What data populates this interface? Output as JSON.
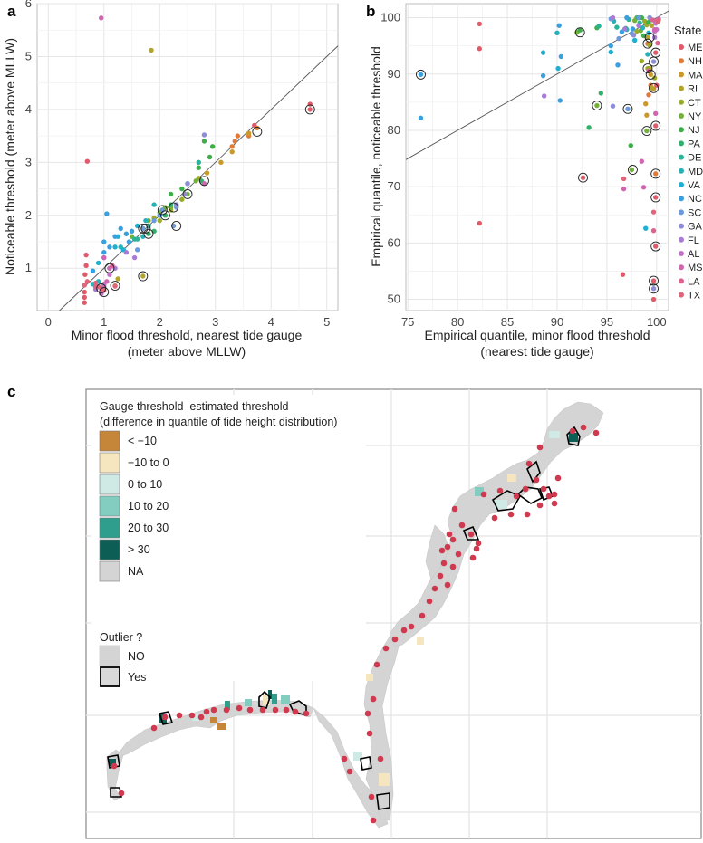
{
  "chart_data": [
    {
      "panel": "a",
      "type": "scatter",
      "xlabel": "Minor flood threshold, nearest tide gauge",
      "xlabel2": "(meter above MLLW)",
      "ylabel": "Noticeable threshold (meter above MLLW)",
      "xlim": [
        -0.2,
        5.2
      ],
      "ylim": [
        0.2,
        6.0
      ],
      "xticks": [
        0,
        1,
        2,
        3,
        4,
        5
      ],
      "yticks": [
        1,
        2,
        3,
        4,
        5,
        6
      ],
      "reference_line": {
        "slope": 1,
        "intercept": 0
      },
      "points": [
        [
          "ME",
          0.65,
          0.35
        ],
        [
          "ME",
          0.65,
          0.45
        ],
        [
          "ME",
          0.65,
          0.55
        ],
        [
          "ME",
          0.68,
          1.05
        ],
        [
          "ME",
          0.66,
          0.88
        ],
        [
          "ME",
          0.7,
          3.02
        ],
        [
          "ME",
          0.68,
          1.25
        ],
        [
          "ME",
          0.95,
          0.62
        ],
        [
          "ME",
          4.7,
          4.1
        ],
        [
          "ME",
          4.7,
          4.0
        ],
        [
          "ME",
          3.7,
          3.7
        ],
        [
          "ME",
          1.0,
          0.7
        ],
        [
          "NH",
          3.35,
          3.4
        ],
        [
          "NH",
          3.3,
          3.3
        ],
        [
          "NH",
          3.4,
          3.5
        ],
        [
          "NH",
          3.6,
          3.5
        ],
        [
          "NH",
          3.75,
          3.65
        ],
        [
          "MA",
          2.85,
          2.8
        ],
        [
          "MA",
          3.3,
          3.2
        ],
        [
          "MA",
          3.6,
          3.55
        ],
        [
          "MA",
          3.1,
          3.0
        ],
        [
          "RI",
          1.85,
          5.12
        ],
        [
          "RI",
          1.7,
          0.85
        ],
        [
          "RI",
          1.0,
          0.68
        ],
        [
          "RI",
          1.2,
          0.67
        ],
        [
          "RI",
          1.25,
          0.8
        ],
        [
          "CT",
          2.1,
          2.0
        ],
        [
          "CT",
          2.4,
          2.3
        ],
        [
          "CT",
          2.7,
          2.7
        ],
        [
          "CT",
          2.2,
          2.1
        ],
        [
          "CT",
          2.3,
          2.2
        ],
        [
          "CT",
          2.0,
          1.9
        ],
        [
          "CT",
          1.9,
          1.95
        ],
        [
          "NY",
          1.5,
          1.6
        ],
        [
          "NY",
          1.8,
          1.9
        ],
        [
          "NY",
          2.0,
          2.05
        ],
        [
          "NY",
          2.2,
          2.15
        ],
        [
          "NY",
          2.5,
          2.4
        ],
        [
          "NY",
          2.65,
          2.65
        ],
        [
          "NY",
          2.1,
          2.15
        ],
        [
          "NJ",
          2.4,
          2.5
        ],
        [
          "NJ",
          2.7,
          2.9
        ],
        [
          "NJ",
          2.9,
          3.1
        ],
        [
          "NJ",
          2.95,
          3.3
        ],
        [
          "NJ",
          2.8,
          3.4
        ],
        [
          "NJ",
          2.5,
          2.6
        ],
        [
          "NJ",
          2.2,
          2.4
        ],
        [
          "PA",
          1.8,
          1.65
        ],
        [
          "PA",
          2.0,
          2.0
        ],
        [
          "PA",
          1.9,
          1.7
        ],
        [
          "PA",
          2.1,
          2.0
        ],
        [
          "PA",
          2.2,
          2.2
        ],
        [
          "PA",
          2.05,
          2.1
        ],
        [
          "PA",
          2.75,
          2.65
        ],
        [
          "DE",
          1.55,
          1.55
        ],
        [
          "DE",
          1.6,
          1.55
        ],
        [
          "DE",
          1.8,
          1.8
        ],
        [
          "DE",
          2.7,
          3.0
        ],
        [
          "MD",
          0.8,
          0.7
        ],
        [
          "MD",
          0.9,
          0.75
        ],
        [
          "MD",
          1.1,
          1.0
        ],
        [
          "MD",
          1.3,
          1.4
        ],
        [
          "MD",
          1.7,
          1.6
        ],
        [
          "MD",
          1.75,
          1.9
        ],
        [
          "MD",
          1.9,
          2.2
        ],
        [
          "VA",
          0.9,
          1.1
        ],
        [
          "VA",
          1.0,
          1.2
        ],
        [
          "VA",
          1.2,
          1.4
        ],
        [
          "VA",
          1.25,
          1.6
        ],
        [
          "VA",
          1.35,
          1.35
        ],
        [
          "VA",
          1.6,
          1.8
        ],
        [
          "VA",
          1.7,
          1.75
        ],
        [
          "NC",
          0.8,
          0.95
        ],
        [
          "NC",
          1.0,
          1.3
        ],
        [
          "NC",
          1.05,
          2.03
        ],
        [
          "NC",
          1.3,
          1.75
        ],
        [
          "NC",
          1.4,
          1.65
        ],
        [
          "NC",
          1.5,
          1.7
        ],
        [
          "NC",
          1.45,
          1.5
        ],
        [
          "NC",
          1.2,
          1.6
        ],
        [
          "NC",
          1.0,
          1.5
        ],
        [
          "NC",
          1.1,
          1.4
        ],
        [
          "SC",
          1.7,
          1.75
        ],
        [
          "SC",
          1.9,
          1.9
        ],
        [
          "SC",
          2.0,
          2.0
        ],
        [
          "SC",
          2.05,
          2.1
        ],
        [
          "SC",
          2.3,
          2.15
        ],
        [
          "SC",
          2.25,
          1.8
        ],
        [
          "SC",
          1.6,
          1.35
        ],
        [
          "GA",
          2.45,
          2.4
        ],
        [
          "GA",
          2.5,
          2.6
        ],
        [
          "GA",
          2.8,
          3.52
        ],
        [
          "GA",
          2.3,
          2.2
        ],
        [
          "FL",
          0.85,
          0.6
        ],
        [
          "FL",
          1.0,
          0.65
        ],
        [
          "FL",
          1.2,
          1.0
        ],
        [
          "FL",
          1.4,
          1.3
        ],
        [
          "FL",
          1.55,
          1.2
        ],
        [
          "FL",
          0.95,
          0.52
        ],
        [
          "AL",
          0.95,
          0.53
        ],
        [
          "AL",
          1.1,
          0.88
        ],
        [
          "AL",
          1.0,
          0.7
        ],
        [
          "MS",
          0.95,
          5.73
        ],
        [
          "MS",
          1.05,
          0.75
        ],
        [
          "MS",
          1.1,
          1.0
        ],
        [
          "MS",
          1.0,
          1.2
        ],
        [
          "MS",
          2.8,
          2.6
        ],
        [
          "LA",
          0.85,
          0.65
        ],
        [
          "LA",
          1.0,
          0.62
        ],
        [
          "LA",
          1.15,
          1.05
        ],
        [
          "TX",
          0.65,
          0.68
        ],
        [
          "TX",
          0.7,
          0.75
        ],
        [
          "TX",
          0.85,
          0.72
        ],
        [
          "TX",
          0.9,
          0.65
        ],
        [
          "TX",
          1.0,
          0.58
        ],
        [
          "TX",
          1.2,
          0.66
        ]
      ],
      "outliers": [
        [
          4.7,
          4.0
        ],
        [
          3.75,
          3.58
        ],
        [
          2.25,
          2.15
        ],
        [
          2.1,
          2.0
        ],
        [
          2.05,
          2.1
        ],
        [
          1.8,
          1.65
        ],
        [
          1.7,
          1.75
        ],
        [
          1.75,
          1.75
        ],
        [
          2.3,
          1.8
        ],
        [
          2.5,
          2.4
        ],
        [
          2.8,
          2.65
        ],
        [
          1.7,
          0.85
        ],
        [
          1.2,
          0.67
        ],
        [
          1.1,
          1.0
        ],
        [
          1.0,
          0.55
        ],
        [
          0.95,
          0.62
        ]
      ]
    },
    {
      "panel": "b",
      "type": "scatter",
      "xlabel": "Empirical quantile, minor flood threshold",
      "xlabel2": "(nearest tide gauge)",
      "ylabel": "Empirical quantile, noticeable threshold",
      "xlim": [
        74.8,
        101.2
      ],
      "ylim": [
        48,
        102.5
      ],
      "xticks": [
        75,
        80,
        85,
        90,
        95,
        100
      ],
      "yticks": [
        50,
        60,
        70,
        80,
        90,
        100
      ],
      "reference_line": {
        "slope": 1,
        "intercept": 0
      },
      "points": [
        [
          "ME",
          82.2,
          98.9
        ],
        [
          "ME",
          82.2,
          94.5
        ],
        [
          "ME",
          82.2,
          63.5
        ],
        [
          "ME",
          96.6,
          54.4
        ],
        [
          "ME",
          99.9,
          93.8
        ],
        [
          "ME",
          100,
          88
        ],
        [
          "ME",
          99.9,
          80.8
        ],
        [
          "ME",
          99.9,
          68.1
        ],
        [
          "ME",
          99.9,
          59.4
        ],
        [
          "ME",
          99.7,
          53.3
        ],
        [
          "ME",
          99.7,
          50
        ],
        [
          "ME",
          92.6,
          71.6
        ],
        [
          "NH",
          99.9,
          72.3
        ],
        [
          "NH",
          99.2,
          86.3
        ],
        [
          "NH",
          99.4,
          88
        ],
        [
          "NH",
          99.1,
          95.4
        ],
        [
          "MA",
          99,
          82.7
        ],
        [
          "MA",
          99.4,
          89.9
        ],
        [
          "MA",
          99.7,
          87.4
        ],
        [
          "MA",
          98.9,
          84.7
        ],
        [
          "RI",
          99.5,
          87.5
        ],
        [
          "RI",
          99.3,
          91
        ],
        [
          "RI",
          99.5,
          98.6
        ],
        [
          "RI",
          99.1,
          96.5
        ],
        [
          "CT",
          98.8,
          99.4
        ],
        [
          "CT",
          99,
          98.7
        ],
        [
          "CT",
          99.3,
          95.1
        ],
        [
          "CT",
          98.5,
          92.3
        ],
        [
          "CT",
          98,
          97.6
        ],
        [
          "CT",
          99.1,
          91
        ],
        [
          "CT",
          99.8,
          89.3
        ],
        [
          "NY",
          92,
          97.4
        ],
        [
          "NY",
          94,
          84.4
        ],
        [
          "NY",
          98,
          100
        ],
        [
          "NY",
          97.8,
          99.5
        ],
        [
          "NY",
          98.4,
          97.7
        ],
        [
          "NY",
          97.5,
          73
        ],
        [
          "NY",
          99,
          79.9
        ],
        [
          "NJ",
          97.4,
          77.3
        ],
        [
          "NJ",
          98.5,
          100
        ],
        [
          "NJ",
          98.7,
          96.8
        ],
        [
          "NJ",
          99.2,
          99.2
        ],
        [
          "NJ",
          94,
          98.2
        ],
        [
          "NJ",
          92.3,
          97.8
        ],
        [
          "PA",
          93.2,
          80.5
        ],
        [
          "PA",
          94.4,
          86.6
        ],
        [
          "PA",
          96.9,
          98.1
        ],
        [
          "PA",
          98.1,
          100
        ],
        [
          "PA",
          99.3,
          100
        ],
        [
          "DE",
          94.2,
          98.5
        ],
        [
          "DE",
          97.2,
          99.7
        ],
        [
          "DE",
          98.3,
          99.1
        ],
        [
          "DE",
          96,
          98.3
        ],
        [
          "MD",
          90,
          97.3
        ],
        [
          "MD",
          95.7,
          99.4
        ],
        [
          "MD",
          97,
          97.9
        ],
        [
          "MD",
          98.6,
          98.2
        ],
        [
          "MD",
          99.1,
          93.5
        ],
        [
          "VA",
          88.6,
          93.8
        ],
        [
          "VA",
          90.1,
          91
        ],
        [
          "VA",
          95.4,
          93.9
        ],
        [
          "VA",
          97.8,
          96
        ],
        [
          "VA",
          98.9,
          62.6
        ],
        [
          "VA",
          99.2,
          97.3
        ],
        [
          "NC",
          76.3,
          89.9
        ],
        [
          "NC",
          76.3,
          82.2
        ],
        [
          "NC",
          88.6,
          89.7
        ],
        [
          "NC",
          90.3,
          85.3
        ],
        [
          "NC",
          90.4,
          93.1
        ],
        [
          "NC",
          90.2,
          98.6
        ],
        [
          "NC",
          95.4,
          95
        ],
        [
          "NC",
          96.1,
          91.6
        ],
        [
          "NC",
          96.5,
          97.5
        ],
        [
          "NC",
          97,
          100
        ],
        [
          "NC",
          97.6,
          98
        ],
        [
          "SC",
          95.4,
          99.8
        ],
        [
          "SC",
          96.2,
          96.3
        ],
        [
          "SC",
          97.1,
          83.8
        ],
        [
          "SC",
          97.5,
          97.2
        ],
        [
          "SC",
          98.2,
          100
        ],
        [
          "GA",
          95.6,
          84.3
        ],
        [
          "GA",
          97.7,
          96.9
        ],
        [
          "GA",
          99.3,
          100
        ],
        [
          "GA",
          99.7,
          92.2
        ],
        [
          "GA",
          99.7,
          51.9
        ],
        [
          "FL",
          88.7,
          86.1
        ],
        [
          "FL",
          95.6,
          100
        ],
        [
          "FL",
          96.8,
          98
        ],
        [
          "FL",
          98.2,
          98.6
        ],
        [
          "FL",
          99.8,
          96.5
        ],
        [
          "AL",
          99.9,
          99
        ],
        [
          "AL",
          99.9,
          99.4
        ],
        [
          "AL",
          100.2,
          99.8
        ],
        [
          "AL",
          100,
          97.9
        ],
        [
          "AL",
          99.8,
          97.6
        ],
        [
          "MS",
          96.7,
          69.6
        ],
        [
          "MS",
          98.7,
          69.9
        ],
        [
          "MS",
          98.5,
          74.5
        ],
        [
          "MS",
          99.9,
          83
        ],
        [
          "MS",
          99.8,
          97.9
        ],
        [
          "LA",
          99.2,
          90.6
        ],
        [
          "LA",
          99.7,
          62.2
        ],
        [
          "LA",
          99.6,
          99.6
        ],
        [
          "LA",
          100.1,
          95.5
        ],
        [
          "TX",
          96.7,
          71.4
        ],
        [
          "TX",
          99.7,
          65.5
        ],
        [
          "TX",
          100.1,
          99.3
        ],
        [
          "TX",
          100.2,
          99.6
        ]
      ],
      "outliers": [
        [
          76.3,
          89.9
        ],
        [
          92.3,
          97.4
        ],
        [
          94,
          84.4
        ],
        [
          92.6,
          71.6
        ],
        [
          97.1,
          83.8
        ],
        [
          97.6,
          73
        ],
        [
          99,
          79.9
        ],
        [
          99.1,
          91
        ],
        [
          99.4,
          89.9
        ],
        [
          99.7,
          87.5
        ],
        [
          99.7,
          92.2
        ],
        [
          99.9,
          93.8
        ],
        [
          99.9,
          80.8
        ],
        [
          99.9,
          72.3
        ],
        [
          99.9,
          68.1
        ],
        [
          99.9,
          59.4
        ],
        [
          99.7,
          53.3
        ],
        [
          99.7,
          51.9
        ],
        [
          99.3,
          96.5
        ],
        [
          99.1,
          95.4
        ]
      ]
    }
  ],
  "legend": {
    "title": "State",
    "states": [
      "ME",
      "NH",
      "MA",
      "RI",
      "CT",
      "NY",
      "NJ",
      "PA",
      "DE",
      "MD",
      "VA",
      "NC",
      "SC",
      "GA",
      "FL",
      "AL",
      "MS",
      "LA",
      "TX"
    ],
    "colors": [
      "#e05a6a",
      "#e07a3a",
      "#c99a2a",
      "#b3a42e",
      "#9aaa2a",
      "#74b13a",
      "#3fae4a",
      "#2fb06b",
      "#2bb39a",
      "#26b0b8",
      "#1fb0d0",
      "#3aa0dd",
      "#6b9bdd",
      "#8d8ddb",
      "#a97bd6",
      "#c272c8",
      "#d065b0",
      "#dc6290",
      "#e0647a"
    ]
  },
  "panel_labels": {
    "a": "a",
    "b": "b",
    "c": "c"
  },
  "map": {
    "legend_title_line1": "Gauge threshold–estimated threshold",
    "legend_title_line2": "(difference in quantile of tide height distribution)",
    "categories": [
      {
        "label": "< −10",
        "color": "#c6863a"
      },
      {
        "label": "−10 to 0",
        "color": "#f5e6c0"
      },
      {
        "label": "0 to 10",
        "color": "#cfe9e4"
      },
      {
        "label": "10 to 20",
        "color": "#83ccc0"
      },
      {
        "label": "20 to 30",
        "color": "#2f9e8d"
      },
      {
        "label": "> 30",
        "color": "#0d5f56"
      },
      {
        "label": "NA",
        "color": "#d4d4d4"
      }
    ],
    "outlier_title": "Outlier ?",
    "outlier_no": "NO",
    "outlier_yes": "Yes",
    "gauge_color": "#cf3a4f",
    "land_color": "#d4d4d4"
  }
}
